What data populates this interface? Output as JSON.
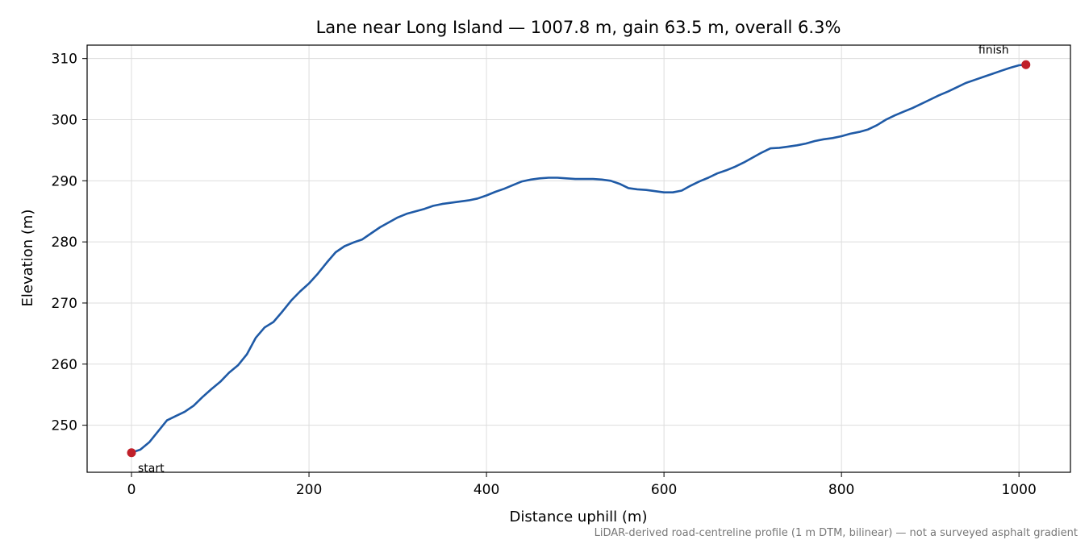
{
  "chart_data": {
    "type": "line",
    "title": "Lane near Long Island — 1007.8 m, gain 63.5 m, overall 6.3%",
    "xlabel": "Distance uphill (m)",
    "ylabel": "Elevation (m)",
    "xlim": [
      -50,
      1058
    ],
    "ylim": [
      242.3,
      312.2
    ],
    "xticks": [
      0,
      200,
      400,
      600,
      800,
      1000
    ],
    "yticks": [
      250,
      260,
      270,
      280,
      290,
      300,
      310
    ],
    "grid": true,
    "line_color": "#1f5aa6",
    "marker_color": "#c0202a",
    "series": [
      {
        "x": [
          0,
          10,
          20,
          30,
          40,
          50,
          60,
          70,
          80,
          90,
          100,
          110,
          120,
          130,
          140,
          150,
          160,
          170,
          180,
          190,
          200,
          210,
          220,
          230,
          240,
          250,
          260,
          270,
          280,
          290,
          300,
          310,
          320,
          330,
          340,
          350,
          360,
          370,
          380,
          390,
          400,
          410,
          420,
          430,
          440,
          450,
          460,
          470,
          480,
          490,
          500,
          510,
          520,
          530,
          540,
          550,
          560,
          570,
          580,
          590,
          600,
          610,
          620,
          630,
          640,
          650,
          660,
          670,
          680,
          690,
          700,
          710,
          720,
          730,
          740,
          750,
          760,
          770,
          780,
          790,
          800,
          810,
          820,
          830,
          840,
          850,
          860,
          870,
          880,
          890,
          900,
          910,
          920,
          930,
          940,
          950,
          960,
          970,
          980,
          990,
          1000,
          1007.8
        ],
        "y": [
          245.5,
          246.0,
          247.2,
          249.0,
          250.8,
          251.5,
          252.2,
          253.2,
          254.6,
          255.9,
          257.1,
          258.6,
          259.8,
          261.6,
          264.3,
          266.0,
          266.9,
          268.6,
          270.4,
          271.9,
          273.2,
          274.8,
          276.6,
          278.3,
          279.3,
          279.9,
          280.4,
          281.4,
          282.4,
          283.2,
          284.0,
          284.6,
          285.0,
          285.4,
          285.9,
          286.2,
          286.4,
          286.6,
          286.8,
          287.1,
          287.6,
          288.2,
          288.7,
          289.3,
          289.9,
          290.2,
          290.4,
          290.5,
          290.5,
          290.4,
          290.3,
          290.3,
          290.3,
          290.2,
          290.0,
          289.5,
          288.8,
          288.6,
          288.5,
          288.3,
          288.1,
          288.1,
          288.4,
          289.2,
          289.9,
          290.5,
          291.2,
          291.7,
          292.3,
          293.0,
          293.8,
          294.6,
          295.3,
          295.4,
          295.6,
          295.8,
          296.1,
          296.5,
          296.8,
          297.0,
          297.3,
          297.7,
          298.0,
          298.4,
          299.1,
          300.0,
          300.7,
          301.3,
          301.9,
          302.6,
          303.3,
          304.0,
          304.6,
          305.3,
          306.0,
          306.5,
          307.0,
          307.5,
          308.0,
          308.5,
          308.9,
          309.0
        ]
      }
    ],
    "annotations": [
      {
        "text": "start",
        "x": 0,
        "y": 245.5
      },
      {
        "text": "finish",
        "x": 1007.8,
        "y": 309.0
      }
    ],
    "footnote": "LiDAR-derived road-centreline profile (1 m DTM, bilinear) — not a surveyed asphalt gradient"
  }
}
